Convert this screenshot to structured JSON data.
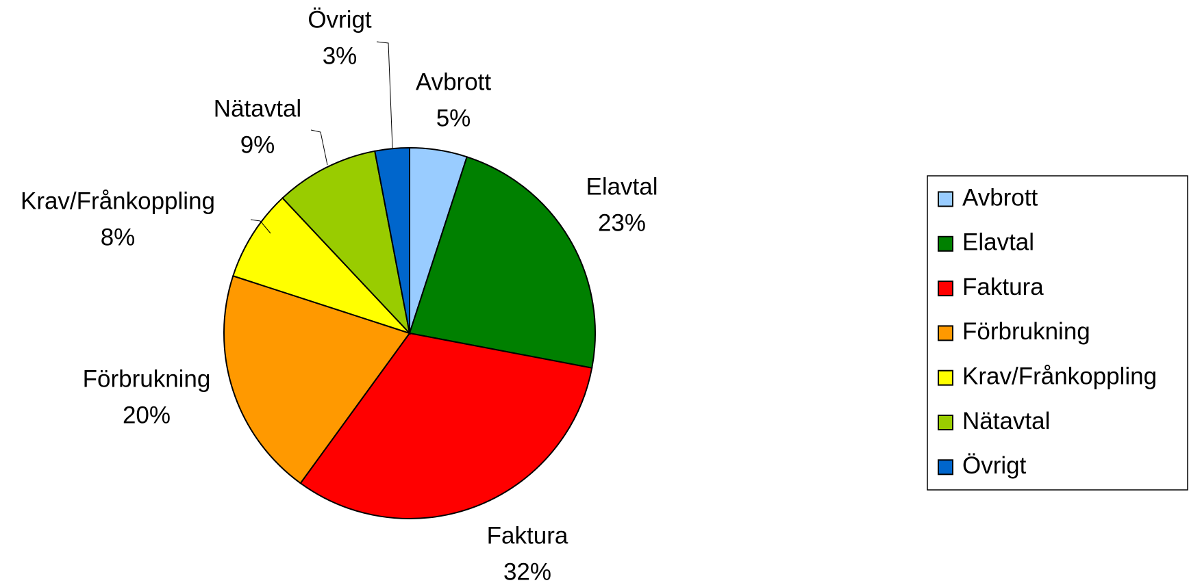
{
  "chart_data": {
    "type": "pie",
    "categories": [
      "Avbrott",
      "Elavtal",
      "Faktura",
      "Förbrukning",
      "Krav/Frånkoppling",
      "Nätavtal",
      "Övrigt"
    ],
    "values": [
      5,
      23,
      32,
      20,
      8,
      9,
      3
    ],
    "value_labels": [
      "5%",
      "23%",
      "32%",
      "20%",
      "8%",
      "9%",
      "3%"
    ],
    "colors": [
      "#99ccff",
      "#008000",
      "#ff0000",
      "#ff9900",
      "#ffff00",
      "#99cc00",
      "#0066cc"
    ],
    "legend": "right"
  }
}
